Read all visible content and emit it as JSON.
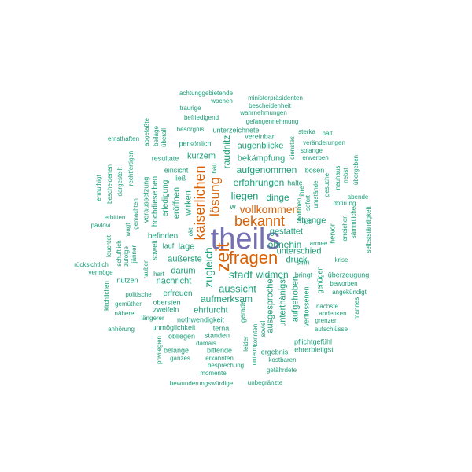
{
  "colors": {
    "largest": "#7570b3",
    "large": "#d95f02",
    "rest": "#1b9e77"
  },
  "words": [
    {
      "text": "theils",
      "tier": "largest",
      "vertical": false
    },
    {
      "text": "fragen",
      "tier": "large",
      "vertical": false
    },
    {
      "text": "zeit",
      "tier": "large",
      "vertical": true
    },
    {
      "text": "kaiserlichen",
      "tier": "large",
      "vertical": true
    },
    {
      "text": "bekannt",
      "tier": "large",
      "vertical": false
    },
    {
      "text": "lösung",
      "tier": "large",
      "vertical": true
    },
    {
      "text": "vollkommen",
      "tier": "large",
      "vertical": false
    },
    {
      "text": "zugleich",
      "tier": "rest",
      "vertical": true
    },
    {
      "text": "stadt",
      "tier": "rest",
      "vertical": false
    },
    {
      "text": "aussicht",
      "tier": "rest",
      "vertical": false
    },
    {
      "text": "liegen",
      "tier": "rest",
      "vertical": false
    },
    {
      "text": "aufgenommen",
      "tier": "rest",
      "vertical": false
    },
    {
      "text": "erfahrungen",
      "tier": "rest",
      "vertical": false
    },
    {
      "text": "raudnitz",
      "tier": "rest",
      "vertical": true
    },
    {
      "text": "aufmerksam",
      "tier": "rest",
      "vertical": false
    },
    {
      "text": "dinge",
      "tier": "rest",
      "vertical": false
    },
    {
      "text": "ohnehin",
      "tier": "rest",
      "vertical": false
    },
    {
      "text": "gestattet",
      "tier": "rest",
      "vertical": false
    },
    {
      "text": "unterschied",
      "tier": "rest",
      "vertical": false
    },
    {
      "text": "widmen",
      "tier": "rest",
      "vertical": false
    },
    {
      "text": "wirken",
      "tier": "rest",
      "vertical": true
    },
    {
      "text": "eröffnen",
      "tier": "rest",
      "vertical": true
    },
    {
      "text": "kurzem",
      "tier": "rest",
      "vertical": false
    },
    {
      "text": "augenblicke",
      "tier": "rest",
      "vertical": false
    },
    {
      "text": "bekämpfung",
      "tier": "rest",
      "vertical": false
    },
    {
      "text": "strenge",
      "tier": "rest",
      "vertical": false
    },
    {
      "text": "druck",
      "tier": "rest",
      "vertical": false
    },
    {
      "text": "ausgesprochen",
      "tier": "rest",
      "vertical": true
    },
    {
      "text": "unterthänigst",
      "tier": "rest",
      "vertical": true
    },
    {
      "text": "aufgehoben",
      "tier": "rest",
      "vertical": true
    },
    {
      "text": "ehrfurcht",
      "tier": "rest",
      "vertical": false
    },
    {
      "text": "nachricht",
      "tier": "rest",
      "vertical": false
    },
    {
      "text": "darum",
      "tier": "rest",
      "vertical": false
    },
    {
      "text": "erfreuen",
      "tier": "rest",
      "vertical": false
    },
    {
      "text": "befinden",
      "tier": "rest",
      "vertical": false
    },
    {
      "text": "lage",
      "tier": "rest",
      "vertical": false
    },
    {
      "text": "äußerste",
      "tier": "rest",
      "vertical": false
    },
    {
      "text": "erledigung",
      "tier": "rest",
      "vertical": true
    },
    {
      "text": "hochdieselben",
      "tier": "rest",
      "vertical": true
    },
    {
      "text": "persönlich",
      "tier": "rest",
      "vertical": false
    },
    {
      "text": "resultate",
      "tier": "rest",
      "vertical": false
    },
    {
      "text": "vereinbar",
      "tier": "rest",
      "vertical": false
    },
    {
      "text": "unterzeichnete",
      "tier": "rest",
      "vertical": false
    },
    {
      "text": "gerade",
      "tier": "rest",
      "vertical": true
    },
    {
      "text": "verflossenen",
      "tier": "rest",
      "vertical": true
    },
    {
      "text": "bringt",
      "tier": "rest",
      "vertical": false
    },
    {
      "text": "sinn",
      "tier": "rest",
      "vertical": false
    },
    {
      "text": "juli",
      "tier": "rest",
      "vertical": false
    },
    {
      "text": "hervor",
      "tier": "rest",
      "vertical": true
    },
    {
      "text": "genügen",
      "tier": "rest",
      "vertical": true
    },
    {
      "text": "zweifeln",
      "tier": "rest",
      "vertical": false
    },
    {
      "text": "obersten",
      "tier": "rest",
      "vertical": false
    },
    {
      "text": "nothwendigkeit",
      "tier": "rest",
      "vertical": false
    },
    {
      "text": "unmöglichkeit",
      "tier": "rest",
      "vertical": false
    },
    {
      "text": "nützen",
      "tier": "rest",
      "vertical": false
    },
    {
      "text": "soweit",
      "tier": "rest",
      "vertical": true
    },
    {
      "text": "lauf",
      "tier": "rest",
      "vertical": false
    },
    {
      "text": "voraussetzung",
      "tier": "rest",
      "vertical": true
    },
    {
      "text": "abgefaßte",
      "tier": "rest",
      "vertical": true
    },
    {
      "text": "beilage",
      "tier": "rest",
      "vertical": true
    },
    {
      "text": "überall",
      "tier": "rest",
      "vertical": true
    },
    {
      "text": "einsicht",
      "tier": "rest",
      "vertical": false
    },
    {
      "text": "ließ",
      "tier": "rest",
      "vertical": false
    },
    {
      "text": "bau",
      "tier": "rest",
      "vertical": true
    },
    {
      "text": "halte",
      "tier": "rest",
      "vertical": false
    },
    {
      "text": "dienstes",
      "tier": "rest",
      "vertical": true
    },
    {
      "text": "umstände",
      "tier": "rest",
      "vertical": true
    },
    {
      "text": "ihre",
      "tier": "rest",
      "vertical": true
    },
    {
      "text": "sofort",
      "tier": "rest",
      "vertical": true
    },
    {
      "text": "böhmen",
      "tier": "rest",
      "vertical": true
    },
    {
      "text": "bösen",
      "tier": "rest",
      "vertical": false
    },
    {
      "text": "gesuche",
      "tier": "rest",
      "vertical": true
    },
    {
      "text": "neuhaus",
      "tier": "rest",
      "vertical": true
    },
    {
      "text": "nebst",
      "tier": "rest",
      "vertical": true
    },
    {
      "text": "übergeben",
      "tier": "rest",
      "vertical": true
    },
    {
      "text": "abende",
      "tier": "rest",
      "vertical": false
    },
    {
      "text": "dotirung",
      "tier": "rest",
      "vertical": false
    },
    {
      "text": "erreichen",
      "tier": "rest",
      "vertical": true
    },
    {
      "text": "sämmtliche",
      "tier": "rest",
      "vertical": true
    },
    {
      "text": "selbstständigkeit",
      "tier": "rest",
      "vertical": true
    },
    {
      "text": "armee",
      "tier": "rest",
      "vertical": false
    },
    {
      "text": "krise",
      "tier": "rest",
      "vertical": false
    },
    {
      "text": "überzeugung",
      "tier": "rest",
      "vertical": false
    },
    {
      "text": "beworben",
      "tier": "rest",
      "vertical": false
    },
    {
      "text": "angekündigt",
      "tier": "rest",
      "vertical": false
    },
    {
      "text": "nächste",
      "tier": "rest",
      "vertical": false
    },
    {
      "text": "andenken",
      "tier": "rest",
      "vertical": false
    },
    {
      "text": "grenzen",
      "tier": "rest",
      "vertical": false
    },
    {
      "text": "aufschlüsse",
      "tier": "rest",
      "vertical": false
    },
    {
      "text": "mannes",
      "tier": "rest",
      "vertical": true
    },
    {
      "text": "pflichtgefühl",
      "tier": "rest",
      "vertical": false
    },
    {
      "text": "ehrerbietigst",
      "tier": "rest",
      "vertical": false
    },
    {
      "text": "ergebnis",
      "tier": "rest",
      "vertical": false
    },
    {
      "text": "kostbaren",
      "tier": "rest",
      "vertical": false
    },
    {
      "text": "gefährdete",
      "tier": "rest",
      "vertical": false
    },
    {
      "text": "konnten",
      "tier": "rest",
      "vertical": true
    },
    {
      "text": "soviel",
      "tier": "rest",
      "vertical": true
    },
    {
      "text": "leider",
      "tier": "rest",
      "vertical": true
    },
    {
      "text": "unterm",
      "tier": "rest",
      "vertical": true
    },
    {
      "text": "terna",
      "tier": "rest",
      "vertical": false
    },
    {
      "text": "standen",
      "tier": "rest",
      "vertical": false
    },
    {
      "text": "damals",
      "tier": "rest",
      "vertical": false
    },
    {
      "text": "bittende",
      "tier": "rest",
      "vertical": false
    },
    {
      "text": "erkannten",
      "tier": "rest",
      "vertical": false
    },
    {
      "text": "besprechung",
      "tier": "rest",
      "vertical": false
    },
    {
      "text": "momente",
      "tier": "rest",
      "vertical": false
    },
    {
      "text": "obliegen",
      "tier": "rest",
      "vertical": false
    },
    {
      "text": "belange",
      "tier": "rest",
      "vertical": false
    },
    {
      "text": "ganzes",
      "tier": "rest",
      "vertical": false
    },
    {
      "text": "privilegien",
      "tier": "rest",
      "vertical": true
    },
    {
      "text": "bewunderungswürdige",
      "tier": "rest",
      "vertical": false
    },
    {
      "text": "unbegränzte",
      "tier": "rest",
      "vertical": false
    },
    {
      "text": "anhörung",
      "tier": "rest",
      "vertical": false
    },
    {
      "text": "längerer",
      "tier": "rest",
      "vertical": false
    },
    {
      "text": "nähere",
      "tier": "rest",
      "vertical": false
    },
    {
      "text": "gemüther",
      "tier": "rest",
      "vertical": false
    },
    {
      "text": "politische",
      "tier": "rest",
      "vertical": false
    },
    {
      "text": "hart",
      "tier": "rest",
      "vertical": false
    },
    {
      "text": "rauben",
      "tier": "rest",
      "vertical": true
    },
    {
      "text": "kirchlichen",
      "tier": "rest",
      "vertical": true
    },
    {
      "text": "vermöge",
      "tier": "rest",
      "vertical": false
    },
    {
      "text": "rücksichtlich",
      "tier": "rest",
      "vertical": false
    },
    {
      "text": "zufolge",
      "tier": "rest",
      "vertical": true
    },
    {
      "text": "schuftlich",
      "tier": "rest",
      "vertical": true
    },
    {
      "text": "jänner",
      "tier": "rest",
      "vertical": true
    },
    {
      "text": "leuchtet",
      "tier": "rest",
      "vertical": true
    },
    {
      "text": "gemachten",
      "tier": "rest",
      "vertical": true
    },
    {
      "text": "pavlovi",
      "tier": "rest",
      "vertical": false
    },
    {
      "text": "erbitten",
      "tier": "rest",
      "vertical": false
    },
    {
      "text": "ermuthigt",
      "tier": "rest",
      "vertical": true
    },
    {
      "text": "bescheidenen",
      "tier": "rest",
      "vertical": true
    },
    {
      "text": "dargestellt",
      "tier": "rest",
      "vertical": true
    },
    {
      "text": "wagt",
      "tier": "rest",
      "vertical": true
    },
    {
      "text": "rechtfertigen",
      "tier": "rest",
      "vertical": true
    },
    {
      "text": "ernsthaften",
      "tier": "rest",
      "vertical": false
    },
    {
      "text": "besorgnis",
      "tier": "rest",
      "vertical": false
    },
    {
      "text": "befriedigend",
      "tier": "rest",
      "vertical": false
    },
    {
      "text": "traurige",
      "tier": "rest",
      "vertical": false
    },
    {
      "text": "wochen",
      "tier": "rest",
      "vertical": false
    },
    {
      "text": "achtunggebietende",
      "tier": "rest",
      "vertical": false
    },
    {
      "text": "ministerpräsidenten",
      "tier": "rest",
      "vertical": false
    },
    {
      "text": "bescheidenheit",
      "tier": "rest",
      "vertical": false
    },
    {
      "text": "wahrnehmungen",
      "tier": "rest",
      "vertical": false
    },
    {
      "text": "gefangennehmung",
      "tier": "rest",
      "vertical": false
    },
    {
      "text": "sterka",
      "tier": "rest",
      "vertical": false
    },
    {
      "text": "halt",
      "tier": "rest",
      "vertical": false
    },
    {
      "text": "veränderungen",
      "tier": "rest",
      "vertical": false
    },
    {
      "text": "solange",
      "tier": "rest",
      "vertical": false
    },
    {
      "text": "erwerben",
      "tier": "rest",
      "vertical": false
    },
    {
      "text": "okt",
      "tier": "rest",
      "vertical": true
    },
    {
      "text": "w",
      "tier": "rest",
      "vertical": false
    }
  ]
}
